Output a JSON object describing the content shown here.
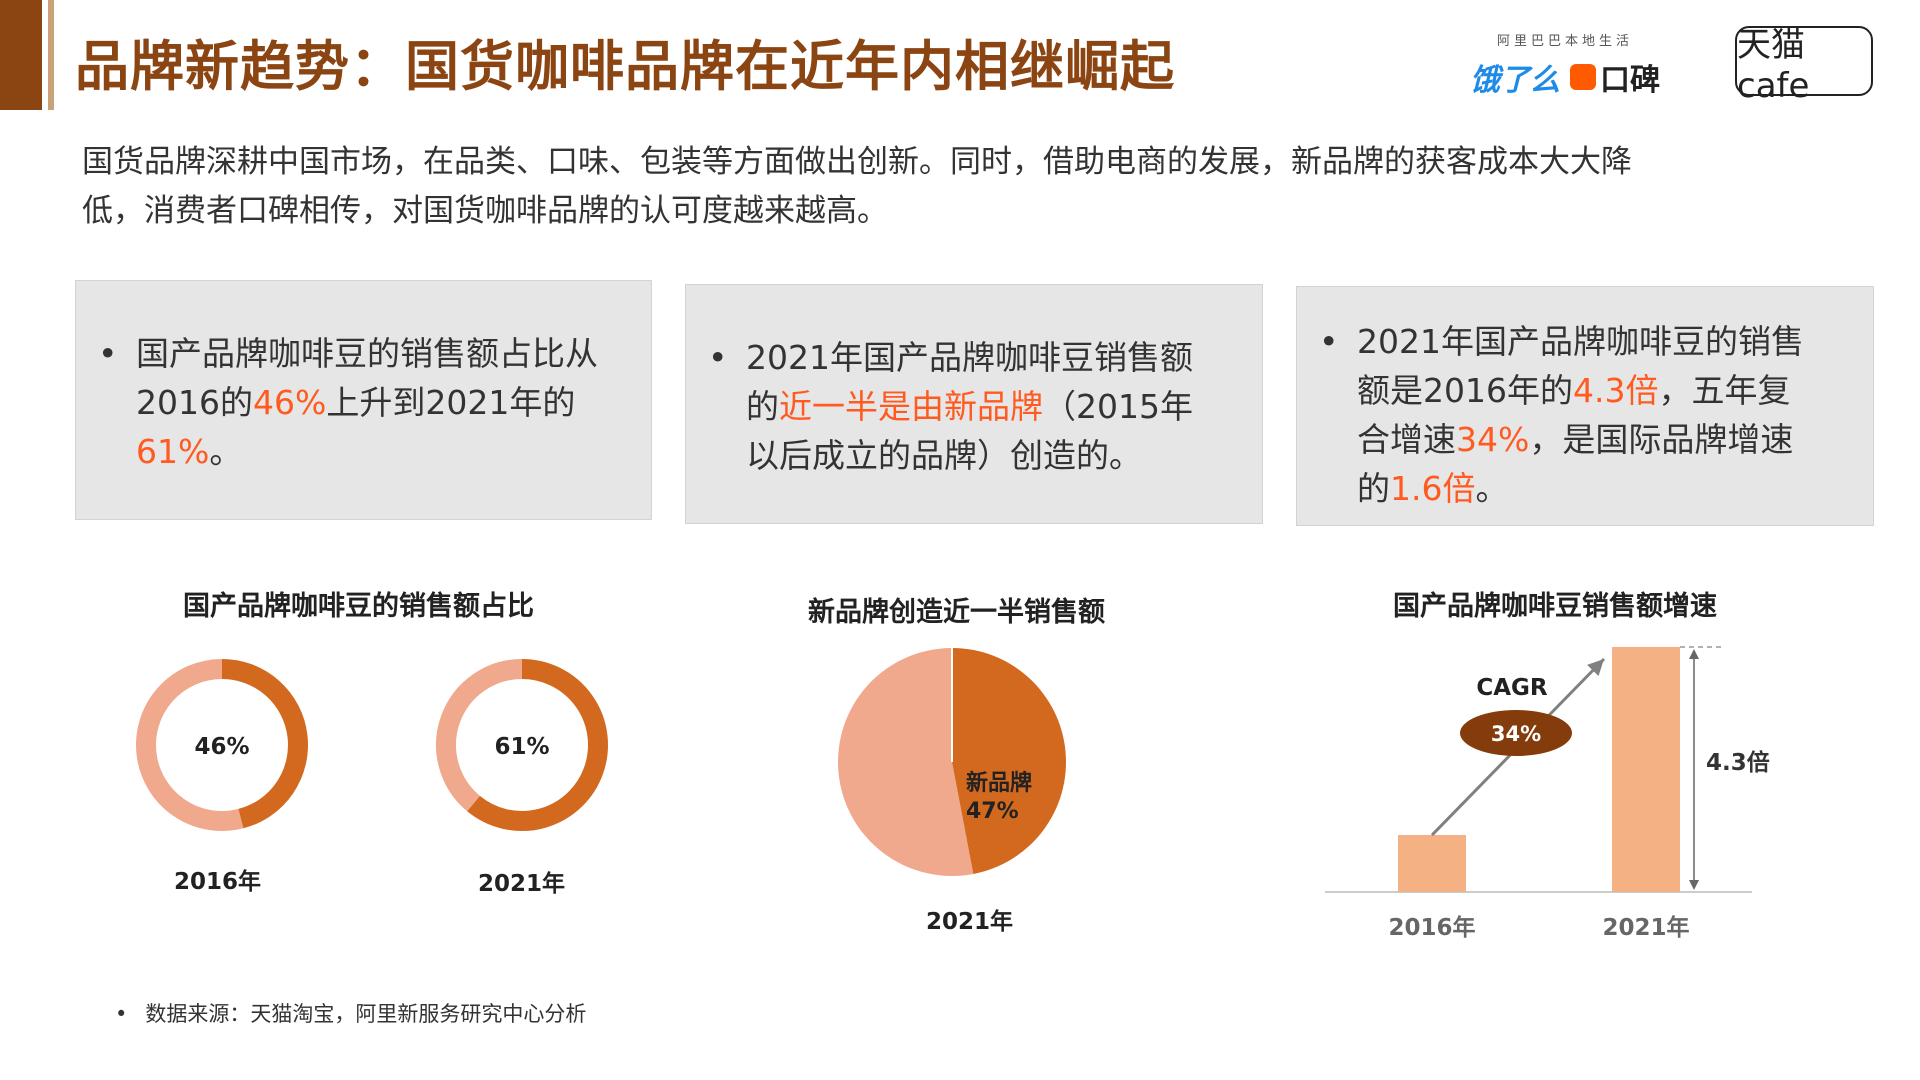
{
  "header": {
    "title": "品牌新趋势：国货咖啡品牌在近年内相继崛起",
    "logos": {
      "alibaba_local": "阿里巴巴本地生活",
      "eleme": "饿了么",
      "koubei": "口碑",
      "tmall_cafe": "天猫cafe"
    }
  },
  "intro": "国货品牌深耕中国市场，在品类、口味、包装等方面做出创新。同时，借助电商的发展，新品牌的获客成本大大降低，消费者口碑相传，对国货咖啡品牌的认可度越来越高。",
  "cards": [
    {
      "bullet": "•",
      "pre": "国产品牌咖啡豆的销售额占比从2016的",
      "h1": "46%",
      "mid": "上升到2021年的",
      "h2": "61%",
      "post": "。"
    },
    {
      "bullet": "•",
      "pre": "2021年国产品牌咖啡豆销售额的",
      "h1": "近一半是由新品牌",
      "post": "（2015年以后成立的品牌）创造的。"
    },
    {
      "bullet": "•",
      "pre": "2021年国产品牌咖啡豆的销售额是2016年的",
      "h1": "4.3倍",
      "m1": "，五年复合增速",
      "h2": "34%",
      "m2": "，是国际品牌增速的",
      "h3": "1.6倍",
      "post": "。"
    }
  ],
  "colors": {
    "highlight": "#ff5a1f",
    "dark_orange": "#d2691e",
    "light_salmon": "#f0a98c",
    "bar": "#f4b183",
    "cagr_ellipse": "#843c0c",
    "title_brown": "#8B4513",
    "card_bg": "#e7e6e6"
  },
  "chart_data": [
    {
      "type": "pie",
      "title": "国产品牌咖啡豆的销售额占比",
      "subcharts": [
        {
          "label": "2016年",
          "value_label": "46%",
          "values": [
            46,
            54
          ]
        },
        {
          "label": "2021年",
          "value_label": "61%",
          "values": [
            61,
            39
          ]
        }
      ]
    },
    {
      "type": "pie",
      "title": "新品牌创造近一半销售额",
      "label": "2021年",
      "slices": [
        {
          "name": "新品牌",
          "value": 47,
          "value_label": "47%"
        },
        {
          "name": "",
          "value": 53
        }
      ]
    },
    {
      "type": "bar",
      "title": "国产品牌咖啡豆销售额增速",
      "categories": [
        "2016年",
        "2021年"
      ],
      "values": [
        1,
        4.3
      ],
      "annotations": {
        "cagr_label": "CAGR",
        "cagr_value": "34%",
        "multiple": "4.3倍"
      }
    }
  ],
  "source": {
    "bullet": "•",
    "text": "数据来源：天猫淘宝，阿里新服务研究中心分析"
  }
}
